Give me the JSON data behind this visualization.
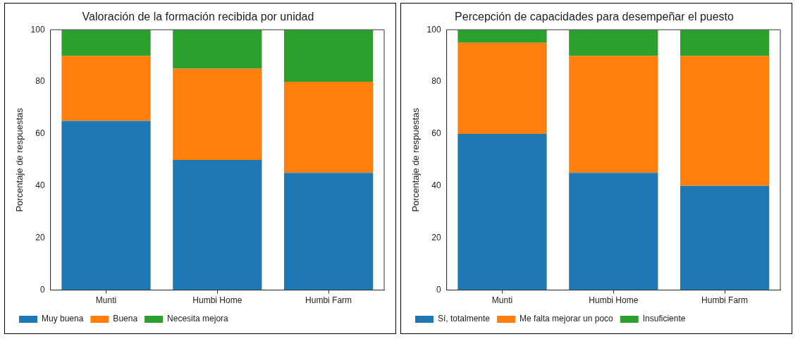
{
  "chart_data": [
    {
      "type": "bar",
      "title": "Valoración de la formación recibida por unidad",
      "ylabel": "Porcentaje de respuestas",
      "categories": [
        "Munti",
        "Humbi Home",
        "Humbi Farm"
      ],
      "stacked": true,
      "ylim": [
        0,
        100
      ],
      "yticks": [
        0,
        20,
        40,
        60,
        80,
        100
      ],
      "grid": false,
      "legend": "bottom left",
      "series": [
        {
          "name": "Muy buena",
          "color": "#1f77b4",
          "values": [
            65,
            50,
            45
          ]
        },
        {
          "name": "Buena",
          "color": "#ff7f0e",
          "values": [
            25,
            35,
            35
          ]
        },
        {
          "name": "Necesita mejora",
          "color": "#2ca02c",
          "values": [
            10,
            15,
            20
          ]
        }
      ]
    },
    {
      "type": "bar",
      "title": "Percepción de capacidades para desempeñar el puesto",
      "ylabel": "Porcentaje de respuestas",
      "categories": [
        "Munti",
        "Humbi Home",
        "Humbi Farm"
      ],
      "stacked": true,
      "ylim": [
        0,
        100
      ],
      "yticks": [
        0,
        20,
        40,
        60,
        80,
        100
      ],
      "grid": false,
      "legend": "bottom left",
      "series": [
        {
          "name": "Sí, totalmente",
          "color": "#1f77b4",
          "values": [
            60,
            45,
            40
          ]
        },
        {
          "name": "Me falta mejorar un poco",
          "color": "#ff7f0e",
          "values": [
            35,
            45,
            50
          ]
        },
        {
          "name": "Insuficiente",
          "color": "#2ca02c",
          "values": [
            5,
            10,
            10
          ]
        }
      ]
    }
  ]
}
